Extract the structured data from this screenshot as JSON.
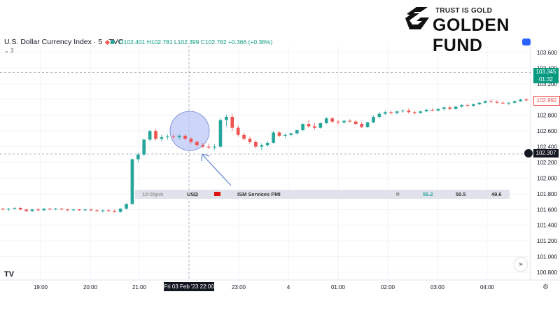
{
  "brand": {
    "tagline": "TRUST IS GOLD",
    "name": "GOLDEN FUND"
  },
  "header": {
    "title": "U.S. Dollar Currency Index · 5 · TVC",
    "ohlc": "O102.401  H102.781  L102.399  C102.762  +0.366 (+0.36%)",
    "indicator_count": "3"
  },
  "price_tags": {
    "last": "103.345",
    "countdown": "01:32",
    "marker": "102.992",
    "crosshair": "102.307"
  },
  "crosshair_date": "Fri 03 Feb '23   22:00",
  "event": {
    "time": "10:00pm",
    "currency": "USD",
    "name": "ISM Services PMI",
    "actual": "55.2",
    "forecast": "50.5",
    "previous": "49.6"
  },
  "colors": {
    "up": "#26a69a",
    "down": "#ef5350",
    "highlight": "#bcc8f5",
    "arrow": "#5b7fd0"
  },
  "icons": {
    "tv_logo": "tradingview-logo-icon",
    "nav": "double-chevron-right-icon",
    "gear": "gear-icon",
    "camera": "snapshot-icon"
  },
  "chart_data": {
    "type": "candlestick",
    "y_ticks": [
      "103.600",
      "103.400",
      "103.200",
      "103.000",
      "102.800",
      "102.600",
      "102.400",
      "102.200",
      "102.000",
      "101.800",
      "101.600",
      "101.400",
      "101.200",
      "101.000",
      "100.800"
    ],
    "x_ticks": [
      "19:00",
      "20:00",
      "21:00",
      "22:00",
      "23:00",
      "4",
      "01:00",
      "02:00",
      "03:00",
      "04:00"
    ],
    "ylim": [
      100.7,
      103.7
    ],
    "candles": [
      [
        101.61,
        101.62,
        101.59,
        101.6
      ],
      [
        101.6,
        101.62,
        101.58,
        101.61
      ],
      [
        101.61,
        101.63,
        101.6,
        101.62
      ],
      [
        101.62,
        101.63,
        101.59,
        101.6
      ],
      [
        101.6,
        101.61,
        101.57,
        101.58
      ],
      [
        101.58,
        101.61,
        101.57,
        101.6
      ],
      [
        101.6,
        101.62,
        101.58,
        101.59
      ],
      [
        101.59,
        101.62,
        101.58,
        101.61
      ],
      [
        101.61,
        101.62,
        101.59,
        101.6
      ],
      [
        101.6,
        101.62,
        101.59,
        101.61
      ],
      [
        101.61,
        101.62,
        101.59,
        101.6
      ],
      [
        101.6,
        101.61,
        101.58,
        101.59
      ],
      [
        101.59,
        101.61,
        101.58,
        101.6
      ],
      [
        101.6,
        101.61,
        101.58,
        101.59
      ],
      [
        101.59,
        101.61,
        101.58,
        101.6
      ],
      [
        101.6,
        101.61,
        101.58,
        101.59
      ],
      [
        101.59,
        101.6,
        101.57,
        101.58
      ],
      [
        101.58,
        101.6,
        101.56,
        101.59
      ],
      [
        101.59,
        101.6,
        101.57,
        101.58
      ],
      [
        101.58,
        101.6,
        101.56,
        101.57
      ],
      [
        101.57,
        101.62,
        101.56,
        101.61
      ],
      [
        101.61,
        101.68,
        101.6,
        101.67
      ],
      [
        101.67,
        102.25,
        101.66,
        102.24
      ],
      [
        102.24,
        102.32,
        102.2,
        102.3
      ],
      [
        102.3,
        102.5,
        102.28,
        102.49
      ],
      [
        102.49,
        102.62,
        102.47,
        102.6
      ],
      [
        102.6,
        102.63,
        102.48,
        102.5
      ],
      [
        102.5,
        102.55,
        102.47,
        102.52
      ],
      [
        102.52,
        102.56,
        102.49,
        102.53
      ],
      [
        102.53,
        102.56,
        102.5,
        102.52
      ],
      [
        102.52,
        102.56,
        102.49,
        102.54
      ],
      [
        102.54,
        102.56,
        102.48,
        102.5
      ],
      [
        102.5,
        102.52,
        102.44,
        102.46
      ],
      [
        102.46,
        102.48,
        102.41,
        102.42
      ],
      [
        102.42,
        102.45,
        102.38,
        102.4
      ],
      [
        102.4,
        102.44,
        102.37,
        102.39
      ],
      [
        102.39,
        102.43,
        102.36,
        102.4
      ],
      [
        102.4,
        102.76,
        102.39,
        102.74
      ],
      [
        102.74,
        102.81,
        102.66,
        102.78
      ],
      [
        102.78,
        102.82,
        102.6,
        102.64
      ],
      [
        102.64,
        102.67,
        102.53,
        102.55
      ],
      [
        102.55,
        102.58,
        102.48,
        102.5
      ],
      [
        102.5,
        102.53,
        102.44,
        102.46
      ],
      [
        102.46,
        102.48,
        102.38,
        102.4
      ],
      [
        102.4,
        102.44,
        102.36,
        102.42
      ],
      [
        102.42,
        102.47,
        102.4,
        102.45
      ],
      [
        102.45,
        102.6,
        102.44,
        102.58
      ],
      [
        102.58,
        102.6,
        102.52,
        102.54
      ],
      [
        102.54,
        102.57,
        102.51,
        102.55
      ],
      [
        102.55,
        102.58,
        102.53,
        102.57
      ],
      [
        102.57,
        102.62,
        102.55,
        102.61
      ],
      [
        102.61,
        102.7,
        102.6,
        102.69
      ],
      [
        102.69,
        102.74,
        102.64,
        102.66
      ],
      [
        102.66,
        102.7,
        102.62,
        102.64
      ],
      [
        102.64,
        102.71,
        102.63,
        102.7
      ],
      [
        102.7,
        102.78,
        102.69,
        102.76
      ],
      [
        102.76,
        102.78,
        102.7,
        102.72
      ],
      [
        102.72,
        102.74,
        102.68,
        102.71
      ],
      [
        102.71,
        102.74,
        102.69,
        102.73
      ],
      [
        102.73,
        102.75,
        102.71,
        102.72
      ],
      [
        102.72,
        102.74,
        102.68,
        102.69
      ],
      [
        102.69,
        102.71,
        102.64,
        102.65
      ],
      [
        102.65,
        102.72,
        102.64,
        102.71
      ],
      [
        102.71,
        102.8,
        102.7,
        102.78
      ],
      [
        102.78,
        102.84,
        102.76,
        102.82
      ],
      [
        102.82,
        102.86,
        102.8,
        102.84
      ],
      [
        102.84,
        102.86,
        102.81,
        102.83
      ],
      [
        102.83,
        102.86,
        102.81,
        102.85
      ],
      [
        102.85,
        102.88,
        102.83,
        102.86
      ],
      [
        102.86,
        102.89,
        102.82,
        102.84
      ],
      [
        102.84,
        102.86,
        102.81,
        102.83
      ],
      [
        102.83,
        102.86,
        102.82,
        102.85
      ],
      [
        102.85,
        102.88,
        102.84,
        102.87
      ],
      [
        102.87,
        102.89,
        102.85,
        102.86
      ],
      [
        102.86,
        102.89,
        102.85,
        102.88
      ],
      [
        102.88,
        102.91,
        102.86,
        102.9
      ],
      [
        102.9,
        102.92,
        102.87,
        102.88
      ],
      [
        102.88,
        102.92,
        102.87,
        102.91
      ],
      [
        102.91,
        102.94,
        102.9,
        102.93
      ],
      [
        102.93,
        102.95,
        102.91,
        102.92
      ],
      [
        102.92,
        102.95,
        102.91,
        102.94
      ],
      [
        102.94,
        102.97,
        102.93,
        102.96
      ],
      [
        102.96,
        102.99,
        102.95,
        102.98
      ],
      [
        102.98,
        103.0,
        102.96,
        102.97
      ],
      [
        102.97,
        102.99,
        102.95,
        102.96
      ],
      [
        102.96,
        102.98,
        102.94,
        102.95
      ],
      [
        102.95,
        102.97,
        102.93,
        102.96
      ],
      [
        102.96,
        102.99,
        102.95,
        102.98
      ],
      [
        102.98,
        103.01,
        102.97,
        103.0
      ],
      [
        103.0,
        103.02,
        102.98,
        102.99
      ]
    ]
  }
}
